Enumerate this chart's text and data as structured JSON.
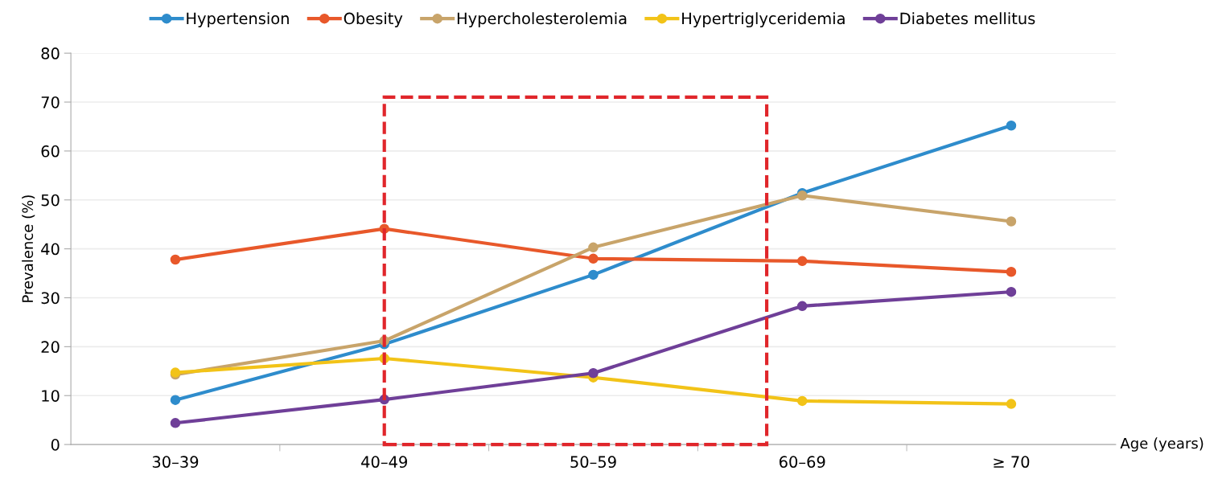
{
  "chart_data": {
    "type": "line",
    "xlabel": "Age (years)",
    "ylabel": "Prevalence (%)",
    "categories": [
      "30–39",
      "40–49",
      "50–59",
      "60–69",
      "≥ 70"
    ],
    "series": [
      {
        "name": "Hypertension",
        "color": "#2e8ccc",
        "values": [
          9.1,
          20.5,
          34.7,
          51.4,
          65.2
        ]
      },
      {
        "name": "Obesity",
        "color": "#e8582a",
        "values": [
          37.8,
          44.1,
          38.0,
          37.5,
          35.3
        ]
      },
      {
        "name": "Hypercholesterolemia",
        "color": "#c8a46a",
        "values": [
          14.3,
          21.2,
          40.3,
          50.9,
          45.6
        ]
      },
      {
        "name": "Hypertriglyceridemia",
        "color": "#f2c318",
        "values": [
          14.7,
          17.6,
          13.7,
          8.9,
          8.3
        ]
      },
      {
        "name": "Diabetes mellitus",
        "color": "#6f3f98",
        "values": [
          4.4,
          9.2,
          14.6,
          28.3,
          31.2
        ]
      }
    ],
    "ylim": [
      0,
      80
    ],
    "yticks": [
      0,
      10,
      20,
      30,
      40,
      50,
      60,
      70,
      80
    ],
    "grid": "y",
    "legend": "top",
    "marker": "circle",
    "line_style": "solid"
  }
}
